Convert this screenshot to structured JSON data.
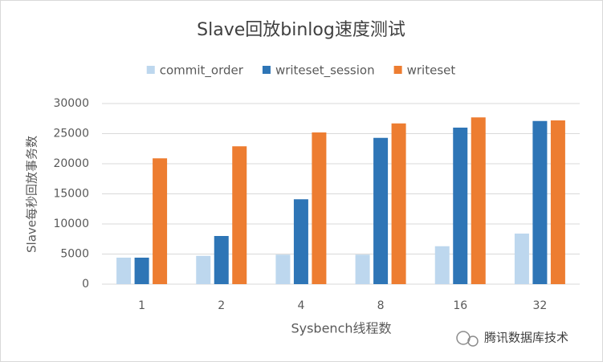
{
  "chart_data": {
    "type": "bar",
    "title": "Slave回放binlog速度测试",
    "x_label": "Sysbench线程数",
    "y_label": "Slave每秒回放事务数",
    "categories": [
      "1",
      "2",
      "4",
      "8",
      "16",
      "32"
    ],
    "series": [
      {
        "name": "commit_order",
        "color": "#bdd7ee",
        "values": [
          4400,
          4700,
          4900,
          4900,
          6300,
          8400
        ]
      },
      {
        "name": "writeset_session",
        "color": "#2e75b6",
        "values": [
          4400,
          8000,
          14100,
          24300,
          26000,
          27100
        ]
      },
      {
        "name": "writeset",
        "color": "#ed7d31",
        "values": [
          20900,
          22900,
          25200,
          26700,
          27700,
          27200
        ]
      }
    ],
    "ylim": [
      0,
      30000
    ],
    "yticks": [
      0,
      5000,
      10000,
      15000,
      20000,
      25000,
      30000
    ],
    "grid": true,
    "legend": "top",
    "watermark": "腾讯数据库技术"
  }
}
